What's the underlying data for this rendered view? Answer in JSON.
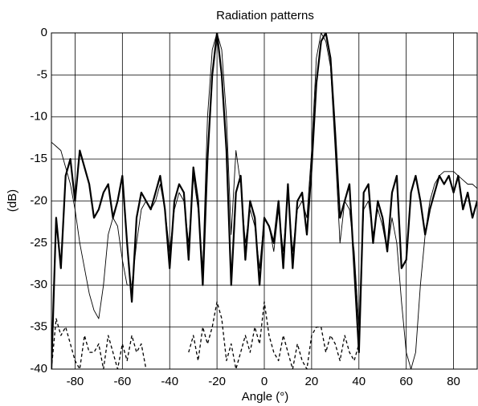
{
  "chart_data": {
    "type": "line",
    "title": "Radiation patterns",
    "x_label": "Angle (°)",
    "y_label": "(dB)",
    "x": [
      -90,
      -88,
      -86,
      -84,
      -82,
      -80,
      -78,
      -76,
      -74,
      -72,
      -70,
      -68,
      -66,
      -64,
      -62,
      -60,
      -58,
      -56,
      -54,
      -52,
      -50,
      -48,
      -46,
      -44,
      -42,
      -40,
      -38,
      -36,
      -34,
      -32,
      -30,
      -28,
      -26,
      -24,
      -22,
      -20,
      -18,
      -16,
      -14,
      -12,
      -10,
      -8,
      -6,
      -4,
      -2,
      0,
      2,
      4,
      6,
      8,
      10,
      12,
      14,
      16,
      18,
      20,
      22,
      24,
      26,
      28,
      30,
      32,
      34,
      36,
      38,
      40,
      42,
      44,
      46,
      48,
      50,
      52,
      54,
      56,
      58,
      60,
      62,
      64,
      66,
      68,
      70,
      72,
      74,
      76,
      78,
      80,
      82,
      84,
      86,
      88,
      90
    ],
    "series": [
      {
        "color": "#000000",
        "line_width": 2.2,
        "line_style": "solid",
        "values": [
          -40,
          -22,
          -28,
          -17,
          -15,
          -20,
          -14,
          -16,
          -18,
          -22,
          -21,
          -19,
          -18,
          -22,
          -20,
          -17,
          -25,
          -32,
          -22,
          -19,
          -20,
          -21,
          -19,
          -17,
          -21,
          -28,
          -20,
          -18,
          -19,
          -27,
          -16,
          -20,
          -30,
          -15,
          -5,
          0,
          -5,
          -14,
          -30,
          -19,
          -17,
          -27,
          -20,
          -22,
          -30,
          -22,
          -23,
          -25,
          -20,
          -28,
          -18,
          -28,
          -20,
          -19,
          -24,
          -16,
          -6,
          -1,
          0,
          -3,
          -12,
          -22,
          -20,
          -18,
          -28,
          -38,
          -19,
          -18,
          -25,
          -20,
          -22,
          -26,
          -19,
          -17,
          -28,
          -27,
          -19,
          -17,
          -20,
          -24,
          -21,
          -19,
          -17,
          -18,
          -17,
          -19,
          -17,
          -21,
          -19,
          -22,
          -20
        ]
      },
      {
        "color": "#000000",
        "line_width": 0.9,
        "line_style": "solid",
        "values": [
          -13,
          -13.5,
          -14,
          -16,
          -18,
          -21,
          -25,
          -28,
          -31,
          -33,
          -34,
          -30,
          -24,
          -22,
          -23,
          -27,
          -30,
          -30,
          -25,
          -21,
          -20,
          -21,
          -20,
          -18,
          -21,
          -26,
          -21,
          -19,
          -20,
          -25,
          -17,
          -21,
          -28,
          -10,
          -2,
          0,
          -2,
          -10,
          -24,
          -14,
          -18,
          -25,
          -21,
          -23,
          -28,
          -22,
          -23,
          -26,
          -21,
          -26,
          -19,
          -26,
          -21,
          -20,
          -22,
          -14,
          -3,
          0,
          -1,
          -4,
          -14,
          -25,
          -20,
          -21,
          -26,
          -35,
          -21,
          -20,
          -24,
          -21,
          -23,
          -26,
          -22,
          -25,
          -32,
          -38,
          -40,
          -38,
          -30,
          -24,
          -20,
          -18,
          -17,
          -16.5,
          -16.5,
          -16.5,
          -17,
          -17.5,
          -18,
          -18,
          -18.5
        ]
      },
      {
        "color": "#000000",
        "line_width": 1.3,
        "line_style": "dashed",
        "values": [
          -40,
          -34,
          -36,
          -35,
          -37,
          -39,
          -40,
          -36,
          -38,
          -38,
          -37,
          -40,
          -36,
          -38,
          -40,
          -37,
          -39,
          -36,
          -38,
          -37,
          -40,
          null,
          null,
          null,
          null,
          null,
          null,
          null,
          null,
          -38,
          -36,
          -39,
          -35,
          -37,
          -35,
          -32,
          -34,
          -39,
          -37,
          -40,
          -38,
          -36,
          -38,
          -35,
          -37,
          -32,
          -36,
          -38,
          -39,
          -36,
          -38,
          -40,
          -37,
          -39,
          -40,
          -36,
          -35,
          -35,
          -38,
          -36,
          -37,
          -39,
          -36,
          -38,
          -39,
          -37,
          null,
          null,
          null,
          null,
          null,
          null,
          null,
          null,
          null,
          null,
          null,
          null,
          null,
          null,
          null,
          null,
          null,
          null,
          null,
          null,
          null,
          null,
          null,
          null,
          null
        ]
      }
    ],
    "xlim": [
      -90,
      90
    ],
    "xticks": [
      -80,
      -60,
      -40,
      -20,
      0,
      20,
      40,
      60,
      80
    ],
    "ylim": [
      -40,
      0
    ],
    "yticks": [
      0,
      -5,
      -10,
      -15,
      -20,
      -25,
      -30,
      -35,
      -40
    ],
    "grid": true
  }
}
